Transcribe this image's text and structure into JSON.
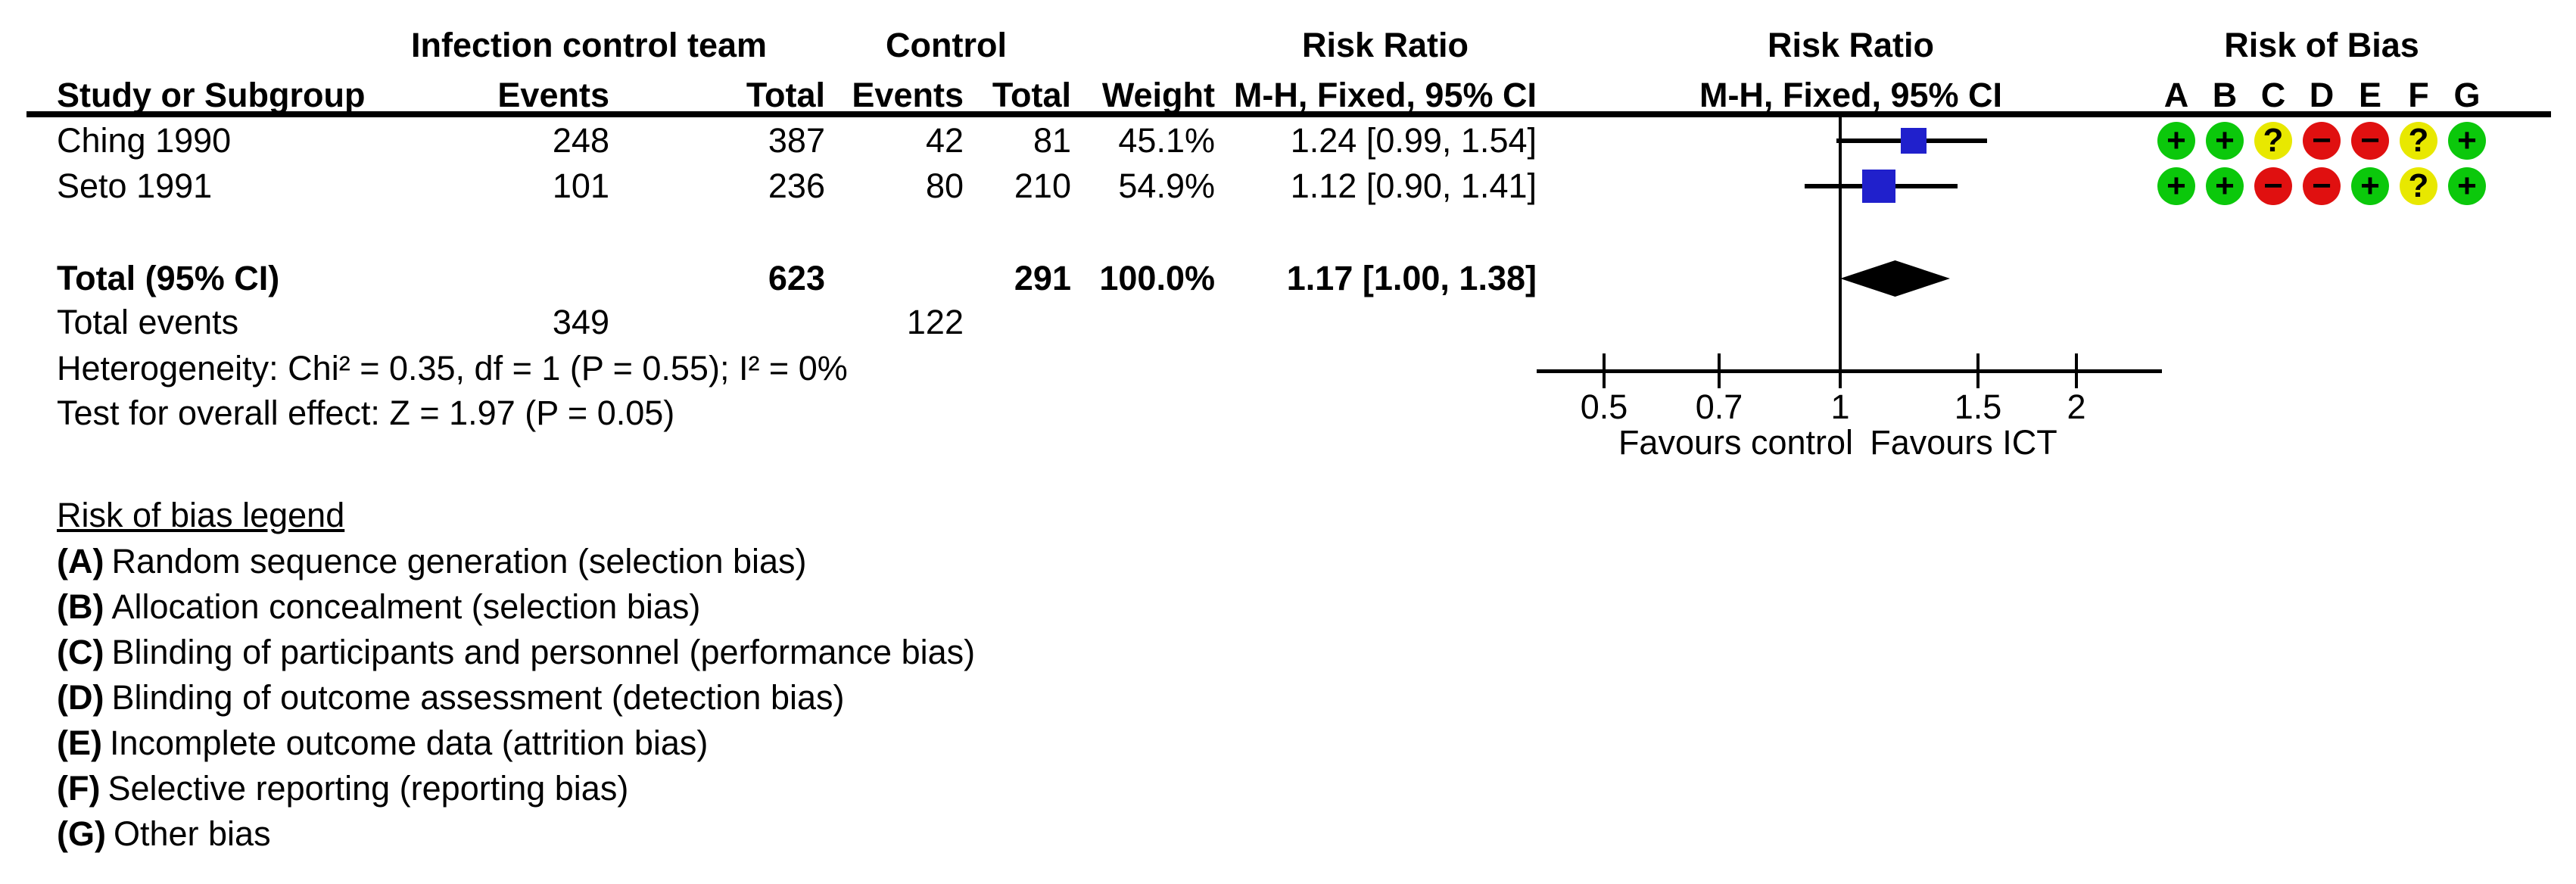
{
  "headers": {
    "group_ict": "Infection control team",
    "group_control": "Control",
    "group_rr_text": "Risk Ratio",
    "group_rr_plot": "Risk Ratio",
    "group_rob": "Risk of Bias",
    "study": "Study or Subgroup",
    "events": "Events",
    "total": "Total",
    "events2": "Events",
    "total2": "Total",
    "weight": "Weight",
    "mh_text": "M-H, Fixed, 95% CI",
    "mh_plot": "M-H, Fixed, 95% CI",
    "rob_letters": [
      "A",
      "B",
      "C",
      "D",
      "E",
      "F",
      "G"
    ]
  },
  "labels": {
    "total_events": "Total events"
  },
  "chart_data": {
    "type": "forest",
    "effect_measure": "Risk Ratio",
    "method": "M-H, Fixed, 95% CI",
    "x_scale": "log",
    "x_ticks": [
      0.5,
      0.7,
      1,
      1.5,
      2
    ],
    "x_range": [
      0.41,
      2.55
    ],
    "favours_left": "Favours control",
    "favours_right": "Favours ICT",
    "studies": [
      {
        "name": "Ching 1990",
        "events_ict": 248,
        "total_ict": 387,
        "events_control": 42,
        "total_control": 81,
        "weight": "45.1%",
        "rr": 1.24,
        "ci_low": 0.99,
        "ci_high": 1.54,
        "label": "1.24 [0.99, 1.54]",
        "marker_px": 34,
        "risk_of_bias": [
          "+",
          "+",
          "?",
          "−",
          "−",
          "?",
          "+"
        ]
      },
      {
        "name": "Seto 1991",
        "events_ict": 101,
        "total_ict": 236,
        "events_control": 80,
        "total_control": 210,
        "weight": "54.9%",
        "rr": 1.12,
        "ci_low": 0.9,
        "ci_high": 1.41,
        "label": "1.12 [0.90, 1.41]",
        "marker_px": 44,
        "risk_of_bias": [
          "+",
          "+",
          "−",
          "−",
          "+",
          "?",
          "+"
        ]
      }
    ],
    "total": {
      "name": "Total (95% CI)",
      "total_ict": 623,
      "total_control": 291,
      "weight": "100.0%",
      "rr": 1.17,
      "ci_low": 1.0,
      "ci_high": 1.38,
      "label": "1.17 [1.00, 1.38]"
    },
    "total_events": {
      "ict": 349,
      "control": 122
    },
    "heterogeneity": "Heterogeneity: Chi² = 0.35, df = 1 (P = 0.55); I² = 0%",
    "overall_effect": "Test for overall effect: Z = 1.97 (P = 0.05)"
  },
  "legend": {
    "title": "Risk of bias legend",
    "items": [
      {
        "label": "(A)",
        "text": "Random sequence generation (selection bias)"
      },
      {
        "label": "(B)",
        "text": "Allocation concealment (selection bias)"
      },
      {
        "label": "(C)",
        "text": "Blinding of participants and personnel (performance bias)"
      },
      {
        "label": "(D)",
        "text": "Blinding of outcome assessment (detection bias)"
      },
      {
        "label": "(E)",
        "text": "Incomplete outcome data (attrition bias)"
      },
      {
        "label": "(F)",
        "text": "Selective reporting (reporting bias)"
      },
      {
        "label": "(G)",
        "text": "Other bias"
      }
    ]
  },
  "colors": {
    "marker_blue": "#2020cc",
    "diamond": "#000000",
    "line": "#000000",
    "text": "#000000",
    "rob_plus": "#0bc80b",
    "rob_unclear": "#e8e800",
    "rob_minus": "#e01010"
  }
}
